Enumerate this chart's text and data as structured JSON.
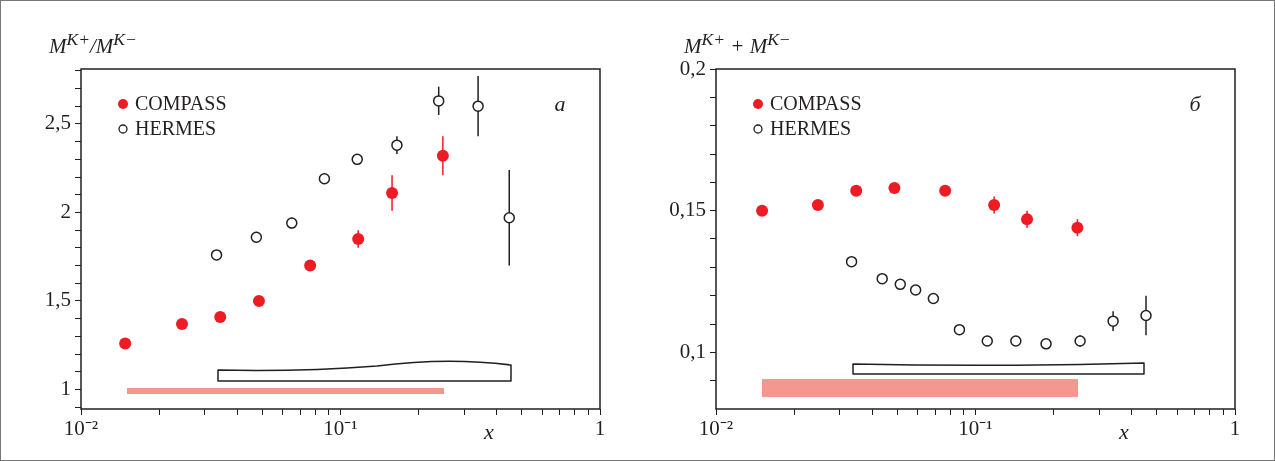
{
  "chart_data": [
    {
      "type": "scatter",
      "ylabel": "M$^{K+}$/M$^{K−}$",
      "xlabel": "x",
      "annotations": [
        "а"
      ],
      "log": "x",
      "legend": "top left",
      "xlim": [
        0.01,
        1
      ],
      "xticks": [
        {
          "value": 0.01,
          "label": "10⁻²"
        },
        {
          "value": 0.02,
          "label": null
        },
        {
          "value": 0.03,
          "label": null
        },
        {
          "value": 0.04,
          "label": null
        },
        {
          "value": 0.05,
          "label": null
        },
        {
          "value": 0.06,
          "label": null
        },
        {
          "value": 0.07,
          "label": null
        },
        {
          "value": 0.08,
          "label": null
        },
        {
          "value": 0.09,
          "label": null
        },
        {
          "value": 0.1,
          "label": "10⁻¹"
        },
        {
          "value": 0.2,
          "label": null
        },
        {
          "value": 0.3,
          "label": null
        },
        {
          "value": 0.4,
          "label": null
        },
        {
          "value": 0.5,
          "label": null
        },
        {
          "value": 0.6,
          "label": null
        },
        {
          "value": 0.7,
          "label": null
        },
        {
          "value": 0.8,
          "label": null
        },
        {
          "value": 0.9,
          "label": null
        },
        1
      ],
      "ylim": [
        0.89,
        2.81
      ],
      "yticks": [
        {
          "value": 0.9,
          "label": null
        },
        1,
        {
          "value": 1.1,
          "label": null
        },
        {
          "value": 1.2,
          "label": null
        },
        {
          "value": 1.3,
          "label": null
        },
        {
          "value": 1.4,
          "label": null
        },
        {
          "value": 1.5,
          "label": "1,5"
        },
        {
          "value": 1.6,
          "label": null
        },
        {
          "value": 1.7,
          "label": null
        },
        {
          "value": 1.8,
          "label": null
        },
        {
          "value": 1.9,
          "label": null
        },
        2,
        {
          "value": 2.1,
          "label": null
        },
        {
          "value": 2.2,
          "label": null
        },
        {
          "value": 2.3,
          "label": null
        },
        {
          "value": 2.4,
          "label": null
        },
        {
          "value": 2.5,
          "label": "2,5"
        },
        {
          "value": 2.6,
          "label": null
        },
        {
          "value": 2.7,
          "label": null
        },
        {
          "value": 2.8,
          "label": null
        }
      ],
      "series": [
        {
          "name": "COMPASS",
          "color": "#ed1c24",
          "marker": "circle",
          "x": [
            0.0148,
            0.0245,
            0.0344,
            0.0485,
            0.0764,
            0.117,
            0.158,
            0.248
          ],
          "values": [
            1.26,
            1.37,
            1.41,
            1.5,
            1.7,
            1.85,
            2.11,
            2.32
          ],
          "errors": [
            null,
            null,
            null,
            null,
            null,
            0.05,
            0.1,
            0.11
          ]
        },
        {
          "name": "HERMES",
          "color": "#231f20",
          "marker": "open circle",
          "x": [
            0.0333,
            0.0474,
            0.0649,
            0.0867,
            0.116,
            0.165,
            0.239,
            0.339,
            0.447
          ],
          "values": [
            1.76,
            1.86,
            1.94,
            2.19,
            2.3,
            2.38,
            2.63,
            2.6,
            1.97
          ],
          "errors": [
            0.02,
            0.03,
            0.03,
            0.03,
            0.03,
            0.05,
            0.08,
            0.17,
            0.27
          ]
        }
      ]
    },
    {
      "type": "scatter",
      "ylabel": "M$^{K+}$ + M$^{K−}$",
      "xlabel": "x",
      "annotations": [
        "б"
      ],
      "log": "x",
      "legend": "top left",
      "xlim": [
        0.01,
        1
      ],
      "xticks": [
        {
          "value": 0.01,
          "label": "10⁻²"
        },
        {
          "value": 0.02,
          "label": null
        },
        {
          "value": 0.03,
          "label": null
        },
        {
          "value": 0.04,
          "label": null
        },
        {
          "value": 0.05,
          "label": null
        },
        {
          "value": 0.06,
          "label": null
        },
        {
          "value": 0.07,
          "label": null
        },
        {
          "value": 0.08,
          "label": null
        },
        {
          "value": 0.09,
          "label": null
        },
        {
          "value": 0.1,
          "label": "10⁻¹"
        },
        {
          "value": 0.2,
          "label": null
        },
        {
          "value": 0.3,
          "label": null
        },
        {
          "value": 0.4,
          "label": null
        },
        {
          "value": 0.5,
          "label": null
        },
        {
          "value": 0.6,
          "label": null
        },
        {
          "value": 0.7,
          "label": null
        },
        {
          "value": 0.8,
          "label": null
        },
        {
          "value": 0.9,
          "label": null
        },
        1
      ],
      "ylim": [
        0.08,
        0.2
      ],
      "yticks": [
        {
          "value": 0.09,
          "label": null
        },
        {
          "value": 0.1,
          "label": "0,1"
        },
        {
          "value": 0.11,
          "label": null
        },
        {
          "value": 0.12,
          "label": null
        },
        {
          "value": 0.13,
          "label": null
        },
        {
          "value": 0.14,
          "label": null
        },
        {
          "value": 0.15,
          "label": "0,15"
        },
        {
          "value": 0.16,
          "label": null
        },
        {
          "value": 0.17,
          "label": null
        },
        {
          "value": 0.18,
          "label": null
        },
        {
          "value": 0.19,
          "label": null
        },
        {
          "value": 0.2,
          "label": "0,2"
        }
      ],
      "series": [
        {
          "name": "COMPASS",
          "color": "#ed1c24",
          "marker": "circle",
          "x": [
            0.01505,
            0.0247,
            0.0347,
            0.0487,
            0.0764,
            0.118,
            0.158,
            0.247
          ],
          "values": [
            0.15,
            0.152,
            0.157,
            0.158,
            0.157,
            0.152,
            0.147,
            0.144
          ],
          "errors": [
            null,
            null,
            null,
            null,
            null,
            0.003,
            0.003,
            0.003
          ]
        },
        {
          "name": "HERMES",
          "color": "#231f20",
          "marker": "open circle",
          "x": [
            0.0333,
            0.0437,
            0.0513,
            0.0588,
            0.0688,
            0.0867,
            0.111,
            0.143,
            0.187,
            0.253,
            0.339,
            0.454
          ],
          "values": [
            0.132,
            0.126,
            0.124,
            0.122,
            0.119,
            0.108,
            0.104,
            0.104,
            0.103,
            0.104,
            0.111,
            0.113
          ],
          "errors": [
            null,
            null,
            null,
            null,
            null,
            null,
            null,
            null,
            null,
            0.002,
            0.0035,
            0.007
          ]
        }
      ]
    }
  ]
}
